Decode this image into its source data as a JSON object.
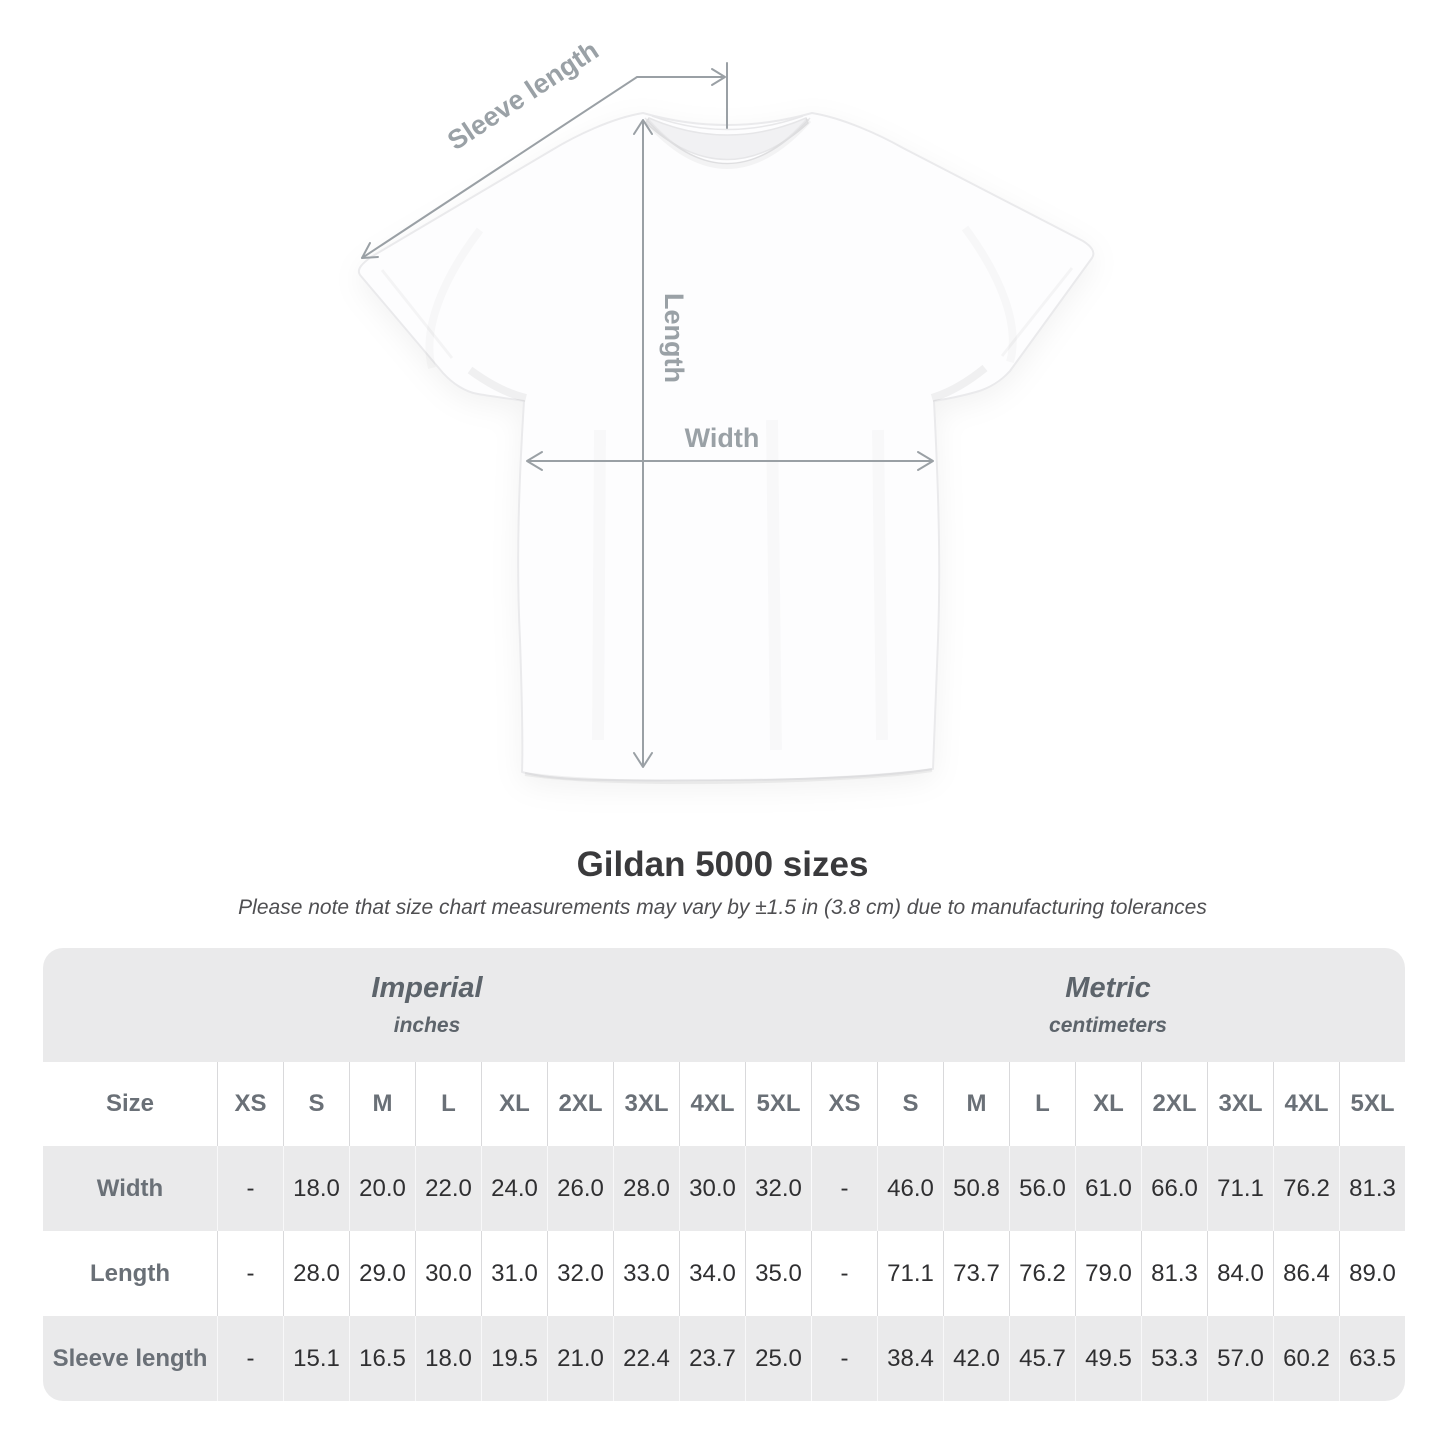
{
  "title": "Gildan 5000 sizes",
  "subtitle": "Please note that size chart measurements may vary by ±1.5 in (3.8 cm) due to manufacturing tolerances",
  "diagram": {
    "sleeve_length_label": "Sleeve length",
    "length_label": "Length",
    "width_label": "Width"
  },
  "colors": {
    "annotation_gray": "#9aa0a5",
    "table_band_gray": "#eaeaeb",
    "header_text": "#6a7077",
    "value_text": "#2f2f31"
  },
  "chart_data": {
    "type": "table",
    "title": "Gildan 5000 sizes",
    "size_header": "Size",
    "sections": [
      {
        "name": "Imperial",
        "unit": "inches"
      },
      {
        "name": "Metric",
        "unit": "centimeters"
      }
    ],
    "sizes": [
      "XS",
      "S",
      "M",
      "L",
      "XL",
      "2XL",
      "3XL",
      "4XL",
      "5XL"
    ],
    "rows": [
      {
        "label": "Width",
        "imperial": [
          "-",
          "18.0",
          "20.0",
          "22.0",
          "24.0",
          "26.0",
          "28.0",
          "30.0",
          "32.0"
        ],
        "metric": [
          "-",
          "46.0",
          "50.8",
          "56.0",
          "61.0",
          "66.0",
          "71.1",
          "76.2",
          "81.3"
        ]
      },
      {
        "label": "Length",
        "imperial": [
          "-",
          "28.0",
          "29.0",
          "30.0",
          "31.0",
          "32.0",
          "33.0",
          "34.0",
          "35.0"
        ],
        "metric": [
          "-",
          "71.1",
          "73.7",
          "76.2",
          "79.0",
          "81.3",
          "84.0",
          "86.4",
          "89.0"
        ]
      },
      {
        "label": "Sleeve length",
        "imperial": [
          "-",
          "15.1",
          "16.5",
          "18.0",
          "19.5",
          "21.0",
          "22.4",
          "23.7",
          "25.0"
        ],
        "metric": [
          "-",
          "38.4",
          "42.0",
          "45.7",
          "49.5",
          "53.3",
          "57.0",
          "60.2",
          "63.5"
        ]
      }
    ]
  }
}
